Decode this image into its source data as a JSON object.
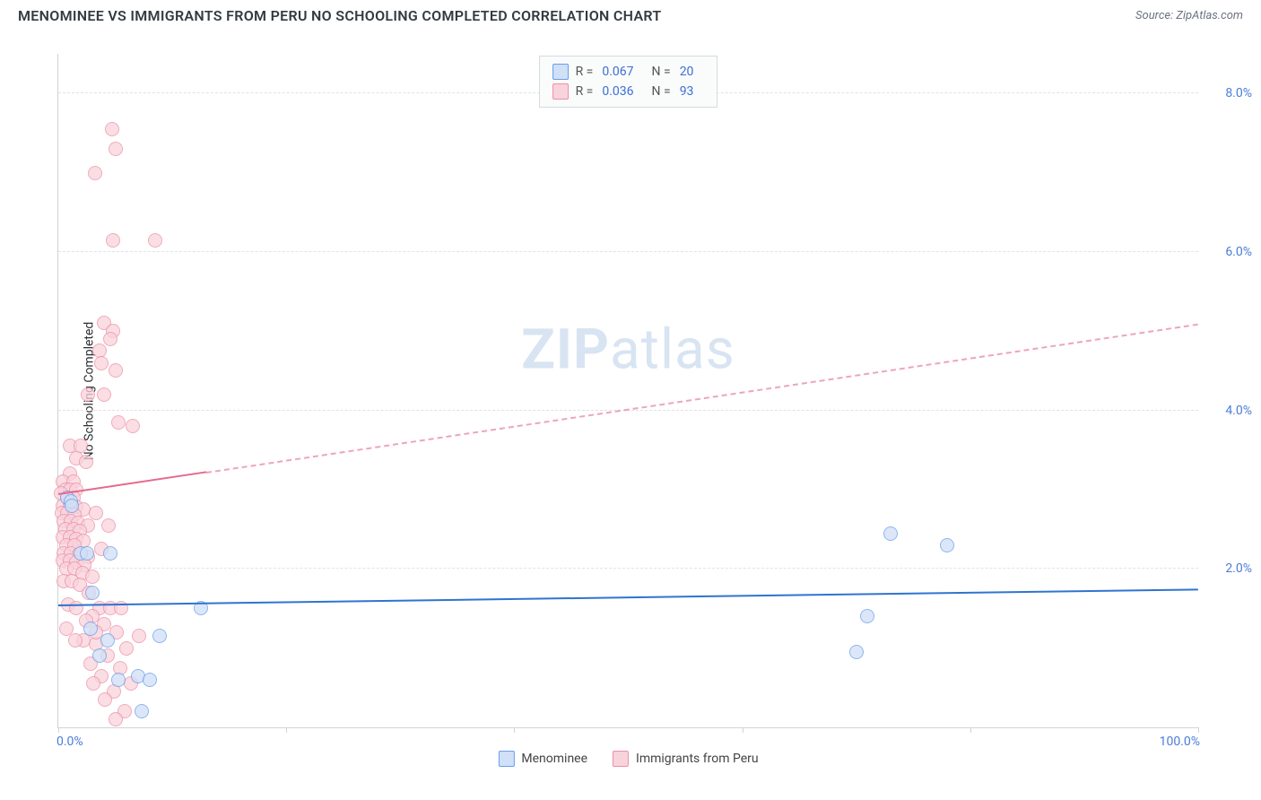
{
  "title": "MENOMINEE VS IMMIGRANTS FROM PERU NO SCHOOLING COMPLETED CORRELATION CHART",
  "source": "Source: ZipAtlas.com",
  "watermark_a": "ZIP",
  "watermark_b": "atlas",
  "chart": {
    "type": "scatter",
    "y_axis_title": "No Schooling Completed",
    "xlim": [
      0,
      100
    ],
    "ylim": [
      0,
      8.5
    ],
    "x_origin_label": "0.0%",
    "x_max_label": "100.0%",
    "x_ticks_pct": [
      0,
      20,
      40,
      60,
      80,
      100
    ],
    "y_grid": [
      {
        "v": 2.0,
        "label": "2.0%"
      },
      {
        "v": 4.0,
        "label": "4.0%"
      },
      {
        "v": 6.0,
        "label": "6.0%"
      },
      {
        "v": 8.0,
        "label": "8.0%"
      }
    ],
    "series": [
      {
        "name": "Menominee",
        "fill": "#cfe0f7",
        "stroke": "#6a9de8",
        "trend_color": "#2f74d0",
        "trend_solid_to_x": 100,
        "trend": {
          "x1": 0,
          "y1": 1.55,
          "x2": 100,
          "y2": 1.75
        },
        "stats": {
          "R": "0.067",
          "N": "20"
        },
        "points": [
          {
            "x": 0.8,
            "y": 2.9
          },
          {
            "x": 1.1,
            "y": 2.85
          },
          {
            "x": 1.2,
            "y": 2.8
          },
          {
            "x": 2.0,
            "y": 2.2
          },
          {
            "x": 2.5,
            "y": 2.2
          },
          {
            "x": 4.6,
            "y": 2.2
          },
          {
            "x": 3.0,
            "y": 1.7
          },
          {
            "x": 2.8,
            "y": 1.25
          },
          {
            "x": 4.3,
            "y": 1.1
          },
          {
            "x": 5.3,
            "y": 0.6
          },
          {
            "x": 7.0,
            "y": 0.65
          },
          {
            "x": 8.0,
            "y": 0.6
          },
          {
            "x": 12.5,
            "y": 1.5
          },
          {
            "x": 8.9,
            "y": 1.15
          },
          {
            "x": 7.3,
            "y": 0.2
          },
          {
            "x": 73,
            "y": 2.45
          },
          {
            "x": 78,
            "y": 2.3
          },
          {
            "x": 71,
            "y": 1.4
          },
          {
            "x": 70,
            "y": 0.95
          },
          {
            "x": 3.6,
            "y": 0.9
          }
        ]
      },
      {
        "name": "Immigrants from Peru",
        "fill": "#f9d3dc",
        "stroke": "#ec8fa6",
        "trend_color": "#e36a8c",
        "trend_solid_to_x": 13,
        "trend": {
          "x1": 0,
          "y1": 2.95,
          "x2": 100,
          "y2": 5.1
        },
        "stats": {
          "R": "0.036",
          "N": "93"
        },
        "points": [
          {
            "x": 4.7,
            "y": 7.55
          },
          {
            "x": 5.0,
            "y": 7.3
          },
          {
            "x": 3.2,
            "y": 7.0
          },
          {
            "x": 4.8,
            "y": 6.15
          },
          {
            "x": 8.5,
            "y": 6.15
          },
          {
            "x": 4.0,
            "y": 5.1
          },
          {
            "x": 4.8,
            "y": 5.0
          },
          {
            "x": 4.6,
            "y": 4.9
          },
          {
            "x": 3.6,
            "y": 4.75
          },
          {
            "x": 3.8,
            "y": 4.6
          },
          {
            "x": 5.0,
            "y": 4.5
          },
          {
            "x": 2.6,
            "y": 4.2
          },
          {
            "x": 4.0,
            "y": 4.2
          },
          {
            "x": 5.3,
            "y": 3.85
          },
          {
            "x": 6.5,
            "y": 3.8
          },
          {
            "x": 1.0,
            "y": 3.55
          },
          {
            "x": 2.0,
            "y": 3.55
          },
          {
            "x": 1.6,
            "y": 3.4
          },
          {
            "x": 2.4,
            "y": 3.35
          },
          {
            "x": 1.0,
            "y": 3.2
          },
          {
            "x": 0.4,
            "y": 3.1
          },
          {
            "x": 1.3,
            "y": 3.1
          },
          {
            "x": 0.6,
            "y": 3.0
          },
          {
            "x": 1.0,
            "y": 3.0
          },
          {
            "x": 1.6,
            "y": 3.0
          },
          {
            "x": 0.2,
            "y": 2.95
          },
          {
            "x": 0.8,
            "y": 2.9
          },
          {
            "x": 1.3,
            "y": 2.9
          },
          {
            "x": 0.4,
            "y": 2.8
          },
          {
            "x": 1.0,
            "y": 2.8
          },
          {
            "x": 1.6,
            "y": 2.78
          },
          {
            "x": 2.2,
            "y": 2.75
          },
          {
            "x": 0.3,
            "y": 2.7
          },
          {
            "x": 0.8,
            "y": 2.7
          },
          {
            "x": 1.4,
            "y": 2.68
          },
          {
            "x": 0.5,
            "y": 2.6
          },
          {
            "x": 1.1,
            "y": 2.6
          },
          {
            "x": 1.7,
            "y": 2.58
          },
          {
            "x": 2.6,
            "y": 2.55
          },
          {
            "x": 0.6,
            "y": 2.5
          },
          {
            "x": 1.3,
            "y": 2.5
          },
          {
            "x": 1.9,
            "y": 2.48
          },
          {
            "x": 3.3,
            "y": 2.7
          },
          {
            "x": 0.4,
            "y": 2.4
          },
          {
            "x": 1.0,
            "y": 2.4
          },
          {
            "x": 1.6,
            "y": 2.38
          },
          {
            "x": 2.2,
            "y": 2.35
          },
          {
            "x": 0.7,
            "y": 2.3
          },
          {
            "x": 1.4,
            "y": 2.3
          },
          {
            "x": 4.4,
            "y": 2.55
          },
          {
            "x": 0.5,
            "y": 2.2
          },
          {
            "x": 1.1,
            "y": 2.2
          },
          {
            "x": 1.8,
            "y": 2.18
          },
          {
            "x": 2.6,
            "y": 2.15
          },
          {
            "x": 0.4,
            "y": 2.1
          },
          {
            "x": 1.0,
            "y": 2.1
          },
          {
            "x": 1.6,
            "y": 2.08
          },
          {
            "x": 2.3,
            "y": 2.05
          },
          {
            "x": 0.7,
            "y": 2.0
          },
          {
            "x": 1.4,
            "y": 2.0
          },
          {
            "x": 2.1,
            "y": 1.95
          },
          {
            "x": 3.0,
            "y": 1.9
          },
          {
            "x": 3.8,
            "y": 2.25
          },
          {
            "x": 0.5,
            "y": 1.85
          },
          {
            "x": 1.2,
            "y": 1.85
          },
          {
            "x": 1.9,
            "y": 1.8
          },
          {
            "x": 2.7,
            "y": 1.7
          },
          {
            "x": 3.6,
            "y": 1.5
          },
          {
            "x": 4.6,
            "y": 1.5
          },
          {
            "x": 5.5,
            "y": 1.5
          },
          {
            "x": 3.0,
            "y": 1.4
          },
          {
            "x": 4.0,
            "y": 1.3
          },
          {
            "x": 5.1,
            "y": 1.2
          },
          {
            "x": 6.0,
            "y": 1.0
          },
          {
            "x": 7.1,
            "y": 1.15
          },
          {
            "x": 3.3,
            "y": 1.05
          },
          {
            "x": 4.3,
            "y": 0.9
          },
          {
            "x": 5.4,
            "y": 0.75
          },
          {
            "x": 6.4,
            "y": 0.55
          },
          {
            "x": 2.8,
            "y": 0.8
          },
          {
            "x": 3.8,
            "y": 0.65
          },
          {
            "x": 4.9,
            "y": 0.45
          },
          {
            "x": 5.8,
            "y": 0.2
          },
          {
            "x": 2.2,
            "y": 1.1
          },
          {
            "x": 3.1,
            "y": 0.55
          },
          {
            "x": 4.1,
            "y": 0.35
          },
          {
            "x": 5.0,
            "y": 0.1
          },
          {
            "x": 0.9,
            "y": 1.55
          },
          {
            "x": 1.6,
            "y": 1.5
          },
          {
            "x": 2.4,
            "y": 1.35
          },
          {
            "x": 3.3,
            "y": 1.2
          },
          {
            "x": 0.7,
            "y": 1.25
          },
          {
            "x": 1.5,
            "y": 1.1
          }
        ]
      }
    ]
  },
  "legend_bottom": [
    {
      "label": "Menominee",
      "fill": "#cfe0f7",
      "stroke": "#6a9de8"
    },
    {
      "label": "Immigrants from Peru",
      "fill": "#f9d3dc",
      "stroke": "#ec8fa6"
    }
  ]
}
